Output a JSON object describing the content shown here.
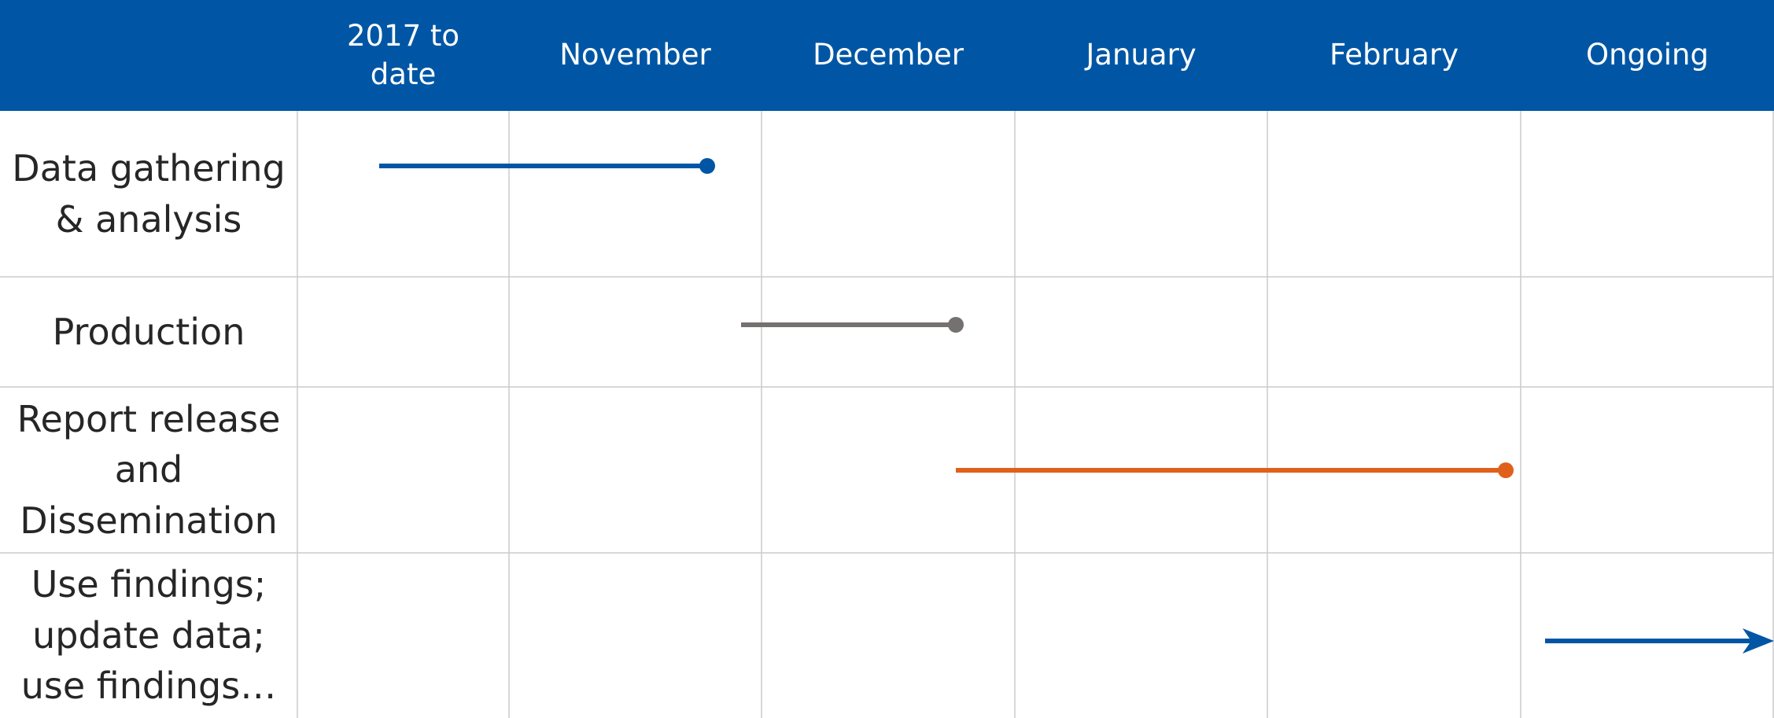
{
  "header": {
    "columns": [
      "2017 to date",
      "November",
      "December",
      "January",
      "February",
      "Ongoing"
    ]
  },
  "rows": [
    {
      "label": "Data gathering & analysis"
    },
    {
      "label": "Production"
    },
    {
      "label": "Report release and Dissemination"
    },
    {
      "label": "Use findings; update data; use findings…"
    }
  ]
}
